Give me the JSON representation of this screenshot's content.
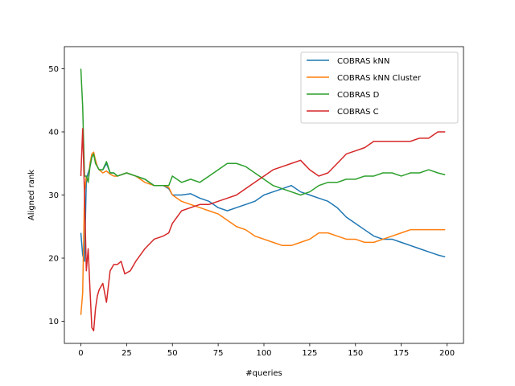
{
  "chart_data": {
    "type": "line",
    "title": "",
    "xlabel": "#queries",
    "ylabel": "Aligned rank",
    "xlim": [
      -9,
      209
    ],
    "ylim": [
      6.5,
      53.5
    ],
    "xticks": [
      0,
      25,
      50,
      75,
      100,
      125,
      150,
      175,
      200
    ],
    "yticks": [
      10,
      20,
      30,
      40,
      50
    ],
    "grid": false,
    "legend_position": "top-right",
    "series": [
      {
        "name": "COBRAS kNN",
        "color": "#1f77b4",
        "points": [
          [
            0,
            24.0
          ],
          [
            1,
            20.5
          ],
          [
            2,
            19.5
          ],
          [
            3,
            32.5
          ],
          [
            4,
            33.5
          ],
          [
            5,
            34.5
          ],
          [
            6,
            36.0
          ],
          [
            7,
            36.5
          ],
          [
            8,
            35.5
          ],
          [
            9,
            34.5
          ],
          [
            10,
            34.0
          ],
          [
            12,
            34.0
          ],
          [
            14,
            35.0
          ],
          [
            16,
            33.5
          ],
          [
            18,
            33.5
          ],
          [
            20,
            33.0
          ],
          [
            25,
            33.5
          ],
          [
            30,
            33.0
          ],
          [
            35,
            32.5
          ],
          [
            40,
            31.5
          ],
          [
            45,
            31.5
          ],
          [
            48,
            31.0
          ],
          [
            50,
            30.0
          ],
          [
            55,
            30.0
          ],
          [
            60,
            30.2
          ],
          [
            65,
            29.5
          ],
          [
            70,
            29.0
          ],
          [
            75,
            28.0
          ],
          [
            80,
            27.5
          ],
          [
            85,
            28.0
          ],
          [
            90,
            28.5
          ],
          [
            95,
            29.0
          ],
          [
            100,
            30.0
          ],
          [
            105,
            30.5
          ],
          [
            110,
            31.0
          ],
          [
            115,
            31.5
          ],
          [
            120,
            30.5
          ],
          [
            125,
            30.0
          ],
          [
            130,
            29.5
          ],
          [
            135,
            29.0
          ],
          [
            140,
            28.0
          ],
          [
            145,
            26.5
          ],
          [
            150,
            25.5
          ],
          [
            155,
            24.5
          ],
          [
            160,
            23.5
          ],
          [
            165,
            23.0
          ],
          [
            170,
            23.0
          ],
          [
            175,
            22.5
          ],
          [
            180,
            22.0
          ],
          [
            185,
            21.5
          ],
          [
            190,
            21.0
          ],
          [
            195,
            20.5
          ],
          [
            199,
            20.2
          ]
        ]
      },
      {
        "name": "COBRAS kNN Cluster",
        "color": "#ff7f0e",
        "points": [
          [
            0,
            11.0
          ],
          [
            1,
            14.5
          ],
          [
            2,
            30.5
          ],
          [
            3,
            33.0
          ],
          [
            4,
            32.0
          ],
          [
            5,
            35.0
          ],
          [
            6,
            36.5
          ],
          [
            7,
            36.8
          ],
          [
            8,
            35.5
          ],
          [
            9,
            34.5
          ],
          [
            10,
            34.0
          ],
          [
            12,
            33.5
          ],
          [
            14,
            33.8
          ],
          [
            16,
            33.3
          ],
          [
            18,
            33.0
          ],
          [
            20,
            33.0
          ],
          [
            25,
            33.5
          ],
          [
            30,
            33.0
          ],
          [
            35,
            32.0
          ],
          [
            40,
            31.5
          ],
          [
            45,
            31.5
          ],
          [
            48,
            31.2
          ],
          [
            50,
            30.0
          ],
          [
            55,
            29.0
          ],
          [
            60,
            28.5
          ],
          [
            65,
            28.0
          ],
          [
            70,
            27.5
          ],
          [
            75,
            27.0
          ],
          [
            80,
            26.0
          ],
          [
            85,
            25.0
          ],
          [
            90,
            24.5
          ],
          [
            95,
            23.5
          ],
          [
            100,
            23.0
          ],
          [
            105,
            22.5
          ],
          [
            110,
            22.0
          ],
          [
            115,
            22.0
          ],
          [
            120,
            22.5
          ],
          [
            125,
            23.0
          ],
          [
            130,
            24.0
          ],
          [
            135,
            24.0
          ],
          [
            140,
            23.5
          ],
          [
            145,
            23.0
          ],
          [
            150,
            23.0
          ],
          [
            155,
            22.5
          ],
          [
            160,
            22.5
          ],
          [
            165,
            23.0
          ],
          [
            170,
            23.5
          ],
          [
            175,
            24.0
          ],
          [
            180,
            24.5
          ],
          [
            185,
            24.5
          ],
          [
            190,
            24.5
          ],
          [
            195,
            24.5
          ],
          [
            199,
            24.5
          ]
        ]
      },
      {
        "name": "COBRAS D",
        "color": "#2ca02c",
        "points": [
          [
            0,
            50.0
          ],
          [
            1,
            44.0
          ],
          [
            2,
            33.0
          ],
          [
            3,
            33.0
          ],
          [
            4,
            32.0
          ],
          [
            5,
            34.5
          ],
          [
            6,
            36.0
          ],
          [
            7,
            36.5
          ],
          [
            8,
            35.0
          ],
          [
            9,
            34.5
          ],
          [
            10,
            34.0
          ],
          [
            12,
            34.0
          ],
          [
            14,
            35.3
          ],
          [
            16,
            33.5
          ],
          [
            18,
            33.5
          ],
          [
            20,
            33.0
          ],
          [
            25,
            33.5
          ],
          [
            30,
            33.0
          ],
          [
            35,
            32.5
          ],
          [
            40,
            31.5
          ],
          [
            45,
            31.5
          ],
          [
            48,
            31.5
          ],
          [
            50,
            33.0
          ],
          [
            55,
            32.0
          ],
          [
            60,
            32.5
          ],
          [
            65,
            32.0
          ],
          [
            70,
            33.0
          ],
          [
            75,
            34.0
          ],
          [
            80,
            35.0
          ],
          [
            85,
            35.0
          ],
          [
            90,
            34.5
          ],
          [
            95,
            33.5
          ],
          [
            100,
            32.5
          ],
          [
            105,
            31.5
          ],
          [
            110,
            31.0
          ],
          [
            115,
            30.5
          ],
          [
            120,
            30.0
          ],
          [
            125,
            30.5
          ],
          [
            130,
            31.5
          ],
          [
            135,
            32.0
          ],
          [
            140,
            32.0
          ],
          [
            145,
            32.5
          ],
          [
            150,
            32.5
          ],
          [
            155,
            33.0
          ],
          [
            160,
            33.0
          ],
          [
            165,
            33.5
          ],
          [
            170,
            33.5
          ],
          [
            175,
            33.0
          ],
          [
            180,
            33.5
          ],
          [
            185,
            33.5
          ],
          [
            190,
            34.0
          ],
          [
            195,
            33.5
          ],
          [
            199,
            33.2
          ]
        ]
      },
      {
        "name": "COBRAS C",
        "color": "#d62728",
        "points": [
          [
            0,
            33.0
          ],
          [
            1,
            40.5
          ],
          [
            2,
            30.0
          ],
          [
            3,
            18.0
          ],
          [
            4,
            21.5
          ],
          [
            5,
            15.0
          ],
          [
            6,
            9.0
          ],
          [
            7,
            8.5
          ],
          [
            8,
            12.0
          ],
          [
            9,
            14.0
          ],
          [
            10,
            15.0
          ],
          [
            12,
            16.0
          ],
          [
            14,
            13.0
          ],
          [
            16,
            18.0
          ],
          [
            18,
            19.0
          ],
          [
            20,
            19.0
          ],
          [
            22,
            19.5
          ],
          [
            24,
            17.5
          ],
          [
            27,
            18.0
          ],
          [
            30,
            19.5
          ],
          [
            35,
            21.5
          ],
          [
            40,
            23.0
          ],
          [
            45,
            23.5
          ],
          [
            48,
            24.0
          ],
          [
            50,
            25.5
          ],
          [
            55,
            27.5
          ],
          [
            60,
            28.0
          ],
          [
            65,
            28.5
          ],
          [
            70,
            28.5
          ],
          [
            75,
            29.0
          ],
          [
            80,
            29.5
          ],
          [
            85,
            30.0
          ],
          [
            90,
            31.0
          ],
          [
            95,
            32.0
          ],
          [
            100,
            33.0
          ],
          [
            105,
            34.0
          ],
          [
            110,
            34.5
          ],
          [
            115,
            35.0
          ],
          [
            120,
            35.5
          ],
          [
            125,
            34.0
          ],
          [
            130,
            33.0
          ],
          [
            135,
            33.5
          ],
          [
            140,
            35.0
          ],
          [
            145,
            36.5
          ],
          [
            150,
            37.0
          ],
          [
            155,
            37.5
          ],
          [
            160,
            38.5
          ],
          [
            165,
            38.5
          ],
          [
            170,
            38.5
          ],
          [
            175,
            38.5
          ],
          [
            180,
            38.5
          ],
          [
            185,
            39.0
          ],
          [
            190,
            39.0
          ],
          [
            195,
            40.0
          ],
          [
            199,
            40.0
          ]
        ]
      }
    ]
  }
}
